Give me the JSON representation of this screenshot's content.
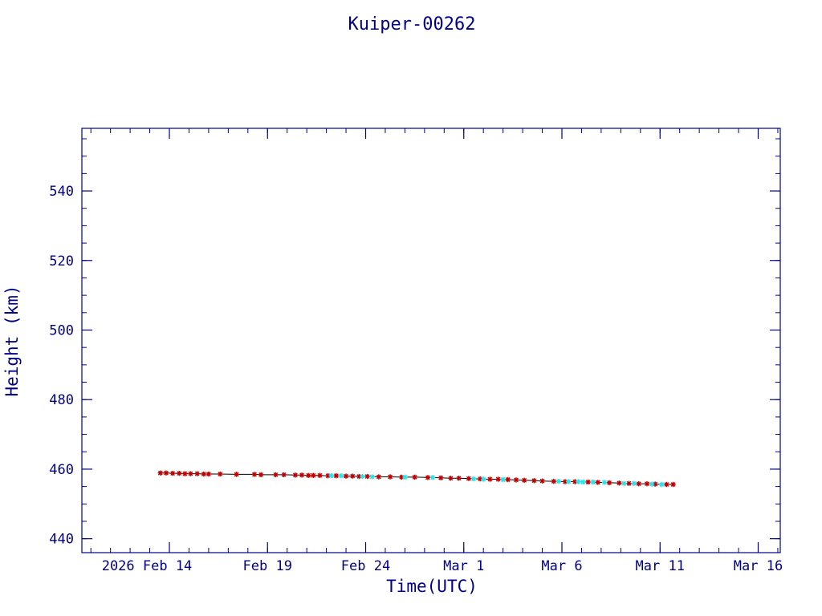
{
  "colors": {
    "axis": "#00008b",
    "line": "#000000",
    "marker_primary": "#c00000",
    "marker_secondary": "#30e0e8",
    "background": "#ffffff"
  },
  "chart_data": {
    "type": "scatter",
    "title": "Kuiper-00262",
    "xlabel": "Time(UTC)",
    "ylabel": "Height (km)",
    "x_ticks": [
      {
        "date": "2026-02-14",
        "label": "2026 Feb 14"
      },
      {
        "date": "2026-02-19",
        "label": "Feb 19"
      },
      {
        "date": "2026-02-24",
        "label": "Feb 24"
      },
      {
        "date": "2026-03-01",
        "label": "Mar  1"
      },
      {
        "date": "2026-03-06",
        "label": "Mar  6"
      },
      {
        "date": "2026-03-11",
        "label": "Mar 11"
      },
      {
        "date": "2026-03-16",
        "label": "Mar 16"
      }
    ],
    "y_ticks": [
      440,
      460,
      480,
      500,
      520,
      540
    ],
    "xlim": [
      "2026-02-09T13:00",
      "2026-03-17T03:00"
    ],
    "ylim": [
      436,
      558
    ],
    "grid": false,
    "series": [
      {
        "role": "primary",
        "color": "#c00000",
        "points": [
          [
            "2026-02-13T13:00",
            458.9
          ],
          [
            "2026-02-13T20:00",
            458.9
          ],
          [
            "2026-02-14T04:00",
            458.8
          ],
          [
            "2026-02-14T12:00",
            458.8
          ],
          [
            "2026-02-14T19:00",
            458.7
          ],
          [
            "2026-02-15T02:00",
            458.7
          ],
          [
            "2026-02-15T10:00",
            458.7
          ],
          [
            "2026-02-15T18:00",
            458.6
          ],
          [
            "2026-02-16T00:00",
            458.6
          ],
          [
            "2026-02-16T14:00",
            458.6
          ],
          [
            "2026-02-17T10:00",
            458.5
          ],
          [
            "2026-02-18T08:00",
            458.5
          ],
          [
            "2026-02-18T16:00",
            458.4
          ],
          [
            "2026-02-19T10:00",
            458.4
          ],
          [
            "2026-02-19T20:00",
            458.4
          ],
          [
            "2026-02-20T10:00",
            458.3
          ],
          [
            "2026-02-20T18:00",
            458.3
          ],
          [
            "2026-02-21T02:00",
            458.2
          ],
          [
            "2026-02-21T08:00",
            458.2
          ],
          [
            "2026-02-21T16:00",
            458.2
          ],
          [
            "2026-02-22T02:00",
            458.1
          ],
          [
            "2026-02-22T12:00",
            458.1
          ],
          [
            "2026-02-23T00:00",
            458.0
          ],
          [
            "2026-02-23T08:00",
            458.0
          ],
          [
            "2026-02-23T16:00",
            457.9
          ],
          [
            "2026-02-24T02:00",
            457.9
          ],
          [
            "2026-02-24T16:00",
            457.8
          ],
          [
            "2026-02-25T06:00",
            457.8
          ],
          [
            "2026-02-25T20:00",
            457.7
          ],
          [
            "2026-02-26T12:00",
            457.7
          ],
          [
            "2026-02-27T04:00",
            457.6
          ],
          [
            "2026-02-27T20:00",
            457.5
          ],
          [
            "2026-02-28T08:00",
            457.4
          ],
          [
            "2026-02-28T18:00",
            457.4
          ],
          [
            "2026-03-01T06:00",
            457.3
          ],
          [
            "2026-03-01T20:00",
            457.2
          ],
          [
            "2026-03-02T08:00",
            457.1
          ],
          [
            "2026-03-02T18:00",
            457.1
          ],
          [
            "2026-03-03T06:00",
            457.0
          ],
          [
            "2026-03-03T16:00",
            456.9
          ],
          [
            "2026-03-04T02:00",
            456.8
          ],
          [
            "2026-03-04T14:00",
            456.7
          ],
          [
            "2026-03-05T00:00",
            456.6
          ],
          [
            "2026-03-05T14:00",
            456.5
          ],
          [
            "2026-03-06T04:00",
            456.4
          ],
          [
            "2026-03-06T16:00",
            456.4
          ],
          [
            "2026-03-07T08:00",
            456.3
          ],
          [
            "2026-03-07T20:00",
            456.2
          ],
          [
            "2026-03-08T10:00",
            456.1
          ],
          [
            "2026-03-08T22:00",
            456.0
          ],
          [
            "2026-03-09T10:00",
            455.9
          ],
          [
            "2026-03-09T22:00",
            455.8
          ],
          [
            "2026-03-10T08:00",
            455.8
          ],
          [
            "2026-03-10T18:00",
            455.7
          ],
          [
            "2026-03-11T08:00",
            455.6
          ],
          [
            "2026-03-11T16:00",
            455.6
          ]
        ]
      },
      {
        "role": "secondary",
        "color": "#30e0e8",
        "points": [
          [
            "2026-02-22T06:00",
            458.1
          ],
          [
            "2026-02-22T18:00",
            458.1
          ],
          [
            "2026-02-23T20:00",
            457.9
          ],
          [
            "2026-02-24T08:00",
            457.8
          ],
          [
            "2026-02-26T00:00",
            457.7
          ],
          [
            "2026-02-27T10:00",
            457.6
          ],
          [
            "2026-03-01T12:00",
            457.2
          ],
          [
            "2026-03-02T00:00",
            457.1
          ],
          [
            "2026-03-03T00:00",
            457.0
          ],
          [
            "2026-03-05T20:00",
            456.5
          ],
          [
            "2026-03-06T08:00",
            456.4
          ],
          [
            "2026-03-06T20:00",
            456.4
          ],
          [
            "2026-03-07T02:00",
            456.3
          ],
          [
            "2026-03-07T14:00",
            456.3
          ],
          [
            "2026-03-08T04:00",
            456.2
          ],
          [
            "2026-03-09T04:00",
            455.9
          ],
          [
            "2026-03-09T16:00",
            455.9
          ],
          [
            "2026-03-10T14:00",
            455.7
          ],
          [
            "2026-03-11T02:00",
            455.6
          ]
        ]
      }
    ]
  }
}
